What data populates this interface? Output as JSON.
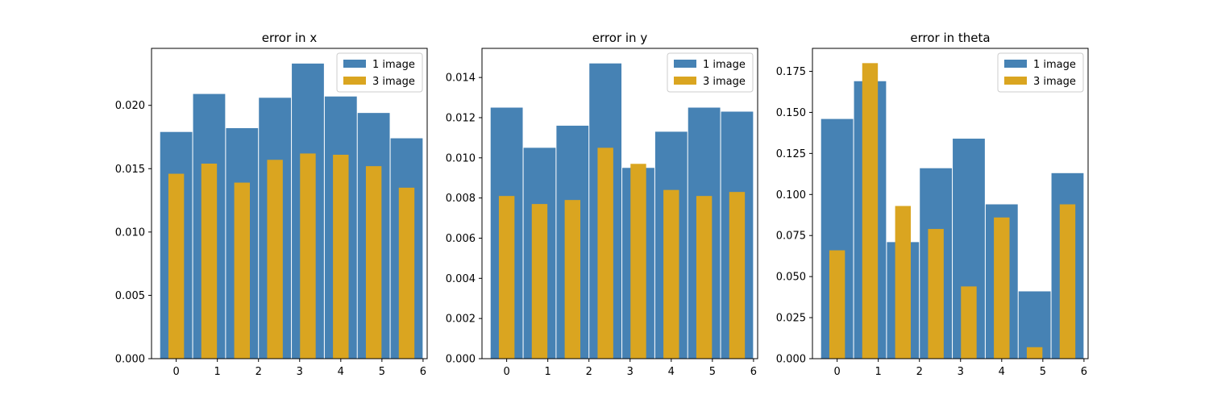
{
  "chart_data": [
    {
      "type": "bar",
      "title": "error in x",
      "xlabel": "",
      "ylabel": "",
      "x_ticks": [
        0,
        1,
        2,
        3,
        4,
        5,
        6
      ],
      "y_ticks": [
        "0.000",
        "0.005",
        "0.010",
        "0.015",
        "0.020"
      ],
      "xlim": [
        -0.6,
        6.1
      ],
      "ylim": [
        0,
        0.0245
      ],
      "legend_position": "top-right",
      "grid": false,
      "series": [
        {
          "name": "1 image",
          "color": "#4682b4",
          "x": [
            0,
            0.8,
            1.6,
            2.4,
            3.2,
            4.0,
            4.8,
            5.6
          ],
          "values": [
            0.0179,
            0.0209,
            0.0182,
            0.0206,
            0.0233,
            0.0207,
            0.0194,
            0.0174
          ]
        },
        {
          "name": "3 image",
          "color": "#daa520",
          "x": [
            0,
            0.8,
            1.6,
            2.4,
            3.2,
            4.0,
            4.8,
            5.6
          ],
          "values": [
            0.0146,
            0.0154,
            0.0139,
            0.0157,
            0.0162,
            0.0161,
            0.0152,
            0.0135
          ]
        }
      ]
    },
    {
      "type": "bar",
      "title": "error in y",
      "xlabel": "",
      "ylabel": "",
      "x_ticks": [
        0,
        1,
        2,
        3,
        4,
        5,
        6
      ],
      "y_ticks": [
        "0.000",
        "0.002",
        "0.004",
        "0.006",
        "0.008",
        "0.010",
        "0.012",
        "0.014"
      ],
      "xlim": [
        -0.6,
        6.1
      ],
      "ylim": [
        0,
        0.01545
      ],
      "legend_position": "top-right",
      "grid": false,
      "series": [
        {
          "name": "1 image",
          "color": "#4682b4",
          "x": [
            0,
            0.8,
            1.6,
            2.4,
            3.2,
            4.0,
            4.8,
            5.6
          ],
          "values": [
            0.0125,
            0.0105,
            0.0116,
            0.0147,
            0.0095,
            0.0113,
            0.0125,
            0.0123
          ]
        },
        {
          "name": "3 image",
          "color": "#daa520",
          "x": [
            0,
            0.8,
            1.6,
            2.4,
            3.2,
            4.0,
            4.8,
            5.6
          ],
          "values": [
            0.0081,
            0.0077,
            0.0079,
            0.0105,
            0.0097,
            0.0084,
            0.0081,
            0.0083
          ]
        }
      ]
    },
    {
      "type": "bar",
      "title": "error in theta",
      "xlabel": "",
      "ylabel": "",
      "x_ticks": [
        0,
        1,
        2,
        3,
        4,
        5,
        6
      ],
      "y_ticks": [
        "0.000",
        "0.025",
        "0.050",
        "0.075",
        "0.100",
        "0.125",
        "0.150",
        "0.175"
      ],
      "xlim": [
        -0.6,
        6.1
      ],
      "ylim": [
        0,
        0.189
      ],
      "legend_position": "top-right",
      "grid": false,
      "series": [
        {
          "name": "1 image",
          "color": "#4682b4",
          "x": [
            0,
            0.8,
            1.6,
            2.4,
            3.2,
            4.0,
            4.8,
            5.6
          ],
          "values": [
            0.146,
            0.169,
            0.071,
            0.116,
            0.134,
            0.094,
            0.041,
            0.113
          ]
        },
        {
          "name": "3 image",
          "color": "#daa520",
          "x": [
            0,
            0.8,
            1.6,
            2.4,
            3.2,
            4.0,
            4.8,
            5.6
          ],
          "values": [
            0.066,
            0.18,
            0.093,
            0.079,
            0.044,
            0.086,
            0.007,
            0.094
          ]
        }
      ]
    }
  ]
}
